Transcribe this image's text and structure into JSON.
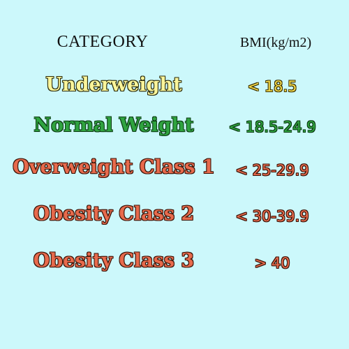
{
  "header": {
    "category": "CATEGORY",
    "bmi": "BMI(kg/m2)"
  },
  "rows": [
    {
      "category": "Underweight",
      "bmi": "< 18.5",
      "color": "#fbf59a",
      "value_color": "#f3d94a"
    },
    {
      "category": "Normal Weight",
      "bmi": "< 18.5-24.9",
      "color": "#2fa33f",
      "value_color": "#2fa33f"
    },
    {
      "category": "Overweight Class 1",
      "bmi": "< 25-29.9",
      "color": "#e76a4c",
      "value_color": "#e76a4c"
    },
    {
      "category": "Obesity Class 2",
      "bmi": "< 30-39.9",
      "color": "#e76a4c",
      "value_color": "#e76a4c"
    },
    {
      "category": "Obesity Class 3",
      "bmi": "> 40",
      "color": "#e76a4c",
      "value_color": "#e76a4c"
    }
  ],
  "background_color": "#ccf8fb"
}
